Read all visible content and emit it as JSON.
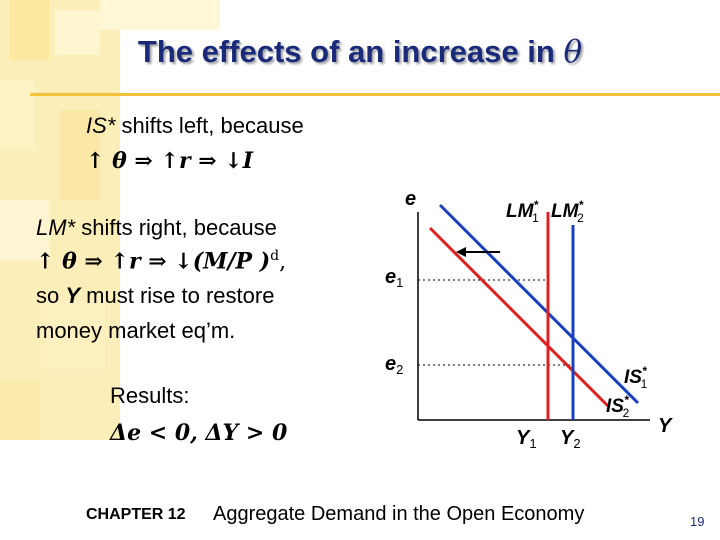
{
  "title": {
    "text": "The effects of an increase in",
    "symbol": "θ"
  },
  "bullets": {
    "is_shift": {
      "label": "IS*",
      "text": " shifts left, because",
      "chain": "↑ θ ⇒ ↑r ⇒ ↓I"
    },
    "lm_shift": {
      "label": "LM*",
      "text": " shifts right, because",
      "chain": "↑ θ ⇒ ↑r ⇒ ↓(M/P )",
      "chain_sup": "d",
      "chain_end": ",",
      "line3_pre": "so ",
      "line3_var": "Y",
      "line3_post": " must rise to restore",
      "line4": "money market eq’m."
    },
    "results": {
      "label": "Results:",
      "line": "Δe < 0,  ΔY > 0"
    }
  },
  "diagram": {
    "y_axis_label": "e",
    "x_axis_label": "Y",
    "e1_label": "e",
    "e1_sub": "1",
    "e2_label": "e",
    "e2_sub": "2",
    "y1_label": "Y",
    "y1_sub": "1",
    "y2_label": "Y",
    "y2_sub": "2",
    "lm1_label": "LM",
    "lm1_sub": "1",
    "lm2_label": "LM",
    "lm2_sub": "2",
    "is1_label": "IS",
    "is1_sub": "1",
    "is2_label": "IS",
    "is2_sub": "2",
    "star": "*",
    "colors": {
      "lm1": "#e02020",
      "lm2": "#1a3fbf",
      "is1": "#1a3fbf",
      "is2": "#e02020"
    }
  },
  "footer": {
    "chapter": "CHAPTER 12",
    "caption": "Aggregate Demand in the Open Economy",
    "page": "19"
  }
}
